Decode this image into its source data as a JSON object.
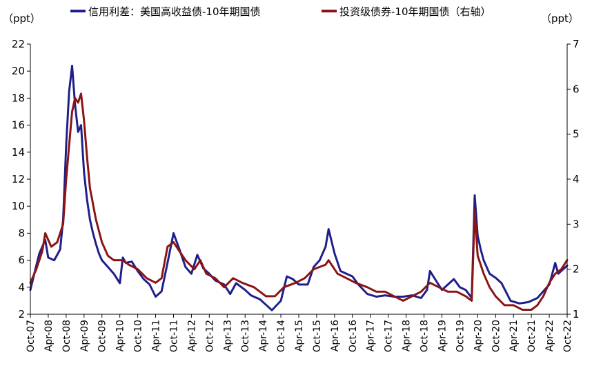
{
  "chart_data": {
    "type": "line",
    "left_axis": {
      "unit_label": "（ppt）",
      "ylim": [
        2,
        22
      ],
      "ticks": [
        "2",
        "4",
        "6",
        "8",
        "10",
        "12",
        "14",
        "16",
        "18",
        "20",
        "22"
      ]
    },
    "right_axis": {
      "unit_label": "（ppt）",
      "ylim": [
        1,
        7
      ],
      "ticks": [
        "1",
        "2",
        "3",
        "4",
        "5",
        "6",
        "7"
      ]
    },
    "x_tick_labels": [
      "Oct-07",
      "Apr-08",
      "Oct-08",
      "Apr-09",
      "Oct-09",
      "Apr-10",
      "Oct-10",
      "Apr-11",
      "Oct-11",
      "Apr-12",
      "Oct-12",
      "Apr-13",
      "Oct-13",
      "Apr-14",
      "Oct-14",
      "Apr-15",
      "Oct-15",
      "Apr-16",
      "Oct-16",
      "Apr-17",
      "Oct-17",
      "Apr-18",
      "Oct-18",
      "Apr-19",
      "Oct-19",
      "Apr-20",
      "Oct-20",
      "Apr-21",
      "Oct-21",
      "Apr-22",
      "Oct-22"
    ],
    "grid": false,
    "legend_position": "top",
    "series": [
      {
        "name": "信用利差：美国高收益债-10年期国债",
        "axis": "left",
        "color": "#1f1f8c",
        "x": [
          "2007-10",
          "2007-12",
          "2008-01",
          "2008-03",
          "2008-04",
          "2008-06",
          "2008-08",
          "2008-09",
          "2008-10",
          "2008-11",
          "2008-12",
          "2009-01",
          "2009-02",
          "2009-03",
          "2009-04",
          "2009-05",
          "2009-06",
          "2009-07",
          "2009-08",
          "2009-09",
          "2009-10",
          "2009-12",
          "2010-02",
          "2010-04",
          "2010-05",
          "2010-06",
          "2010-08",
          "2010-10",
          "2010-12",
          "2011-02",
          "2011-04",
          "2011-06",
          "2011-08",
          "2011-10",
          "2011-12",
          "2012-02",
          "2012-04",
          "2012-06",
          "2012-08",
          "2012-10",
          "2012-12",
          "2013-03",
          "2013-05",
          "2013-07",
          "2013-10",
          "2013-12",
          "2014-03",
          "2014-05",
          "2014-07",
          "2014-10",
          "2014-12",
          "2015-02",
          "2015-04",
          "2015-07",
          "2015-09",
          "2015-11",
          "2016-01",
          "2016-02",
          "2016-04",
          "2016-06",
          "2016-08",
          "2016-10",
          "2016-12",
          "2017-03",
          "2017-06",
          "2017-09",
          "2017-12",
          "2018-03",
          "2018-06",
          "2018-09",
          "2018-11",
          "2018-12",
          "2019-02",
          "2019-04",
          "2019-06",
          "2019-08",
          "2019-10",
          "2019-12",
          "2020-02",
          "2020-03",
          "2020-04",
          "2020-05",
          "2020-06",
          "2020-08",
          "2020-10",
          "2020-12",
          "2021-03",
          "2021-06",
          "2021-09",
          "2021-12",
          "2022-02",
          "2022-04",
          "2022-06",
          "2022-07",
          "2022-08",
          "2022-10"
        ],
        "values": [
          3.8,
          5.6,
          6.5,
          7.5,
          6.2,
          6.0,
          6.8,
          9.0,
          14.5,
          18.5,
          20.4,
          17.5,
          15.5,
          16.0,
          12.5,
          10.5,
          9.0,
          8.0,
          7.2,
          6.5,
          6.0,
          5.5,
          5.0,
          4.3,
          6.2,
          5.8,
          5.9,
          5.2,
          4.6,
          4.2,
          3.3,
          3.7,
          5.8,
          8.0,
          6.8,
          5.5,
          5.0,
          6.4,
          5.4,
          5.0,
          4.5,
          4.2,
          3.5,
          4.3,
          3.8,
          3.4,
          3.1,
          2.7,
          2.3,
          3.0,
          4.8,
          4.6,
          4.2,
          4.2,
          5.5,
          6.0,
          7.0,
          8.3,
          6.5,
          5.2,
          5.0,
          4.8,
          4.2,
          3.5,
          3.3,
          3.4,
          3.3,
          3.3,
          3.4,
          3.2,
          3.8,
          5.2,
          4.5,
          3.8,
          4.2,
          4.6,
          4.0,
          3.8,
          3.2,
          10.8,
          7.8,
          6.8,
          6.0,
          5.0,
          4.7,
          4.3,
          3.0,
          2.8,
          2.9,
          3.2,
          3.7,
          4.2,
          5.8,
          5.0,
          5.2,
          5.6
        ]
      },
      {
        "name": "投资级债券-10年期国债（右轴）",
        "axis": "right",
        "color": "#8b1414",
        "x": [
          "2007-10",
          "2007-12",
          "2008-02",
          "2008-03",
          "2008-05",
          "2008-07",
          "2008-09",
          "2008-10",
          "2008-12",
          "2009-01",
          "2009-02",
          "2009-03",
          "2009-04",
          "2009-05",
          "2009-06",
          "2009-08",
          "2009-10",
          "2009-12",
          "2010-02",
          "2010-05",
          "2010-07",
          "2010-10",
          "2011-01",
          "2011-04",
          "2011-06",
          "2011-08",
          "2011-10",
          "2011-12",
          "2012-02",
          "2012-05",
          "2012-07",
          "2012-09",
          "2012-12",
          "2013-03",
          "2013-06",
          "2013-09",
          "2014-01",
          "2014-05",
          "2014-08",
          "2014-11",
          "2015-03",
          "2015-06",
          "2015-09",
          "2016-01",
          "2016-02",
          "2016-05",
          "2016-08",
          "2016-11",
          "2017-03",
          "2017-06",
          "2017-09",
          "2017-12",
          "2018-03",
          "2018-06",
          "2018-09",
          "2018-12",
          "2019-03",
          "2019-06",
          "2019-09",
          "2019-12",
          "2020-02",
          "2020-03",
          "2020-04",
          "2020-06",
          "2020-08",
          "2020-10",
          "2021-01",
          "2021-04",
          "2021-07",
          "2021-10",
          "2021-12",
          "2022-02",
          "2022-04",
          "2022-06",
          "2022-08",
          "2022-10"
        ],
        "values": [
          1.7,
          2.0,
          2.4,
          2.8,
          2.5,
          2.6,
          3.0,
          4.0,
          5.5,
          5.8,
          5.7,
          5.9,
          5.3,
          4.5,
          3.8,
          3.1,
          2.6,
          2.3,
          2.2,
          2.2,
          2.1,
          2.0,
          1.8,
          1.7,
          1.8,
          2.5,
          2.6,
          2.4,
          2.2,
          2.0,
          2.2,
          1.9,
          1.8,
          1.6,
          1.8,
          1.7,
          1.6,
          1.4,
          1.4,
          1.6,
          1.7,
          1.8,
          2.0,
          2.1,
          2.2,
          1.9,
          1.8,
          1.7,
          1.6,
          1.5,
          1.5,
          1.4,
          1.3,
          1.4,
          1.5,
          1.7,
          1.6,
          1.5,
          1.5,
          1.4,
          1.3,
          3.3,
          2.3,
          1.9,
          1.6,
          1.4,
          1.2,
          1.2,
          1.1,
          1.1,
          1.2,
          1.4,
          1.7,
          1.9,
          2.0,
          2.2
        ]
      }
    ]
  }
}
